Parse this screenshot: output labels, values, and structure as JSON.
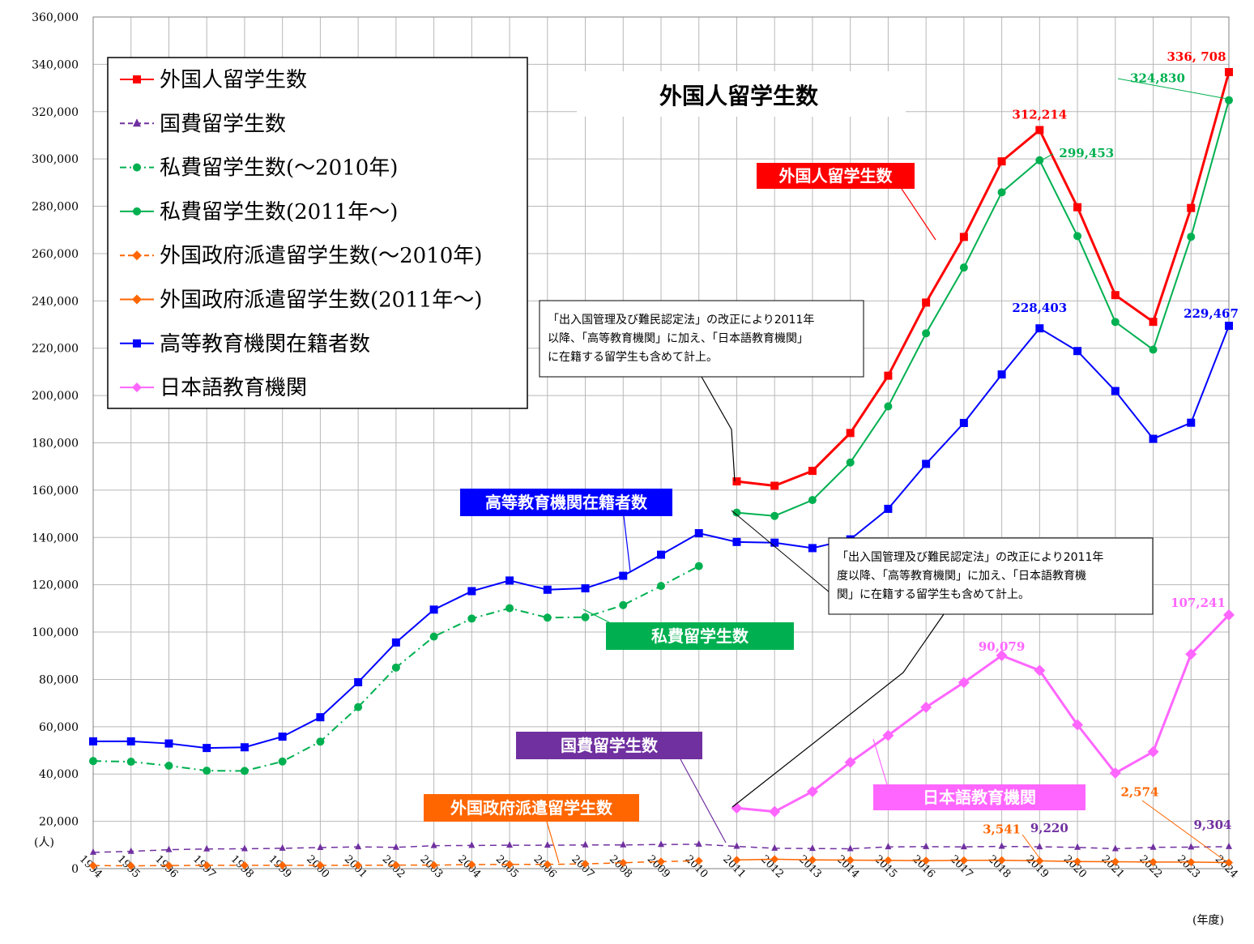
{
  "chart_data": {
    "type": "line",
    "title": "外国人留学生数",
    "y_unit": "(人)",
    "x_unit": "(年度)",
    "ylim": [
      0,
      360000
    ],
    "y_ticks": [
      "0",
      "20,000",
      "40,000",
      "60,000",
      "80,000",
      "100,000",
      "120,000",
      "140,000",
      "160,000",
      "180,000",
      "200,000",
      "220,000",
      "240,000",
      "260,000",
      "280,000",
      "300,000",
      "320,000",
      "340,000",
      "360,000"
    ],
    "x": [
      "1994",
      "1995",
      "1996",
      "1997",
      "1998",
      "1999",
      "2000",
      "2001",
      "2002",
      "2003",
      "2004",
      "2005",
      "2006",
      "2007",
      "2008",
      "2009",
      "2010",
      "2011",
      "2012",
      "2013",
      "2014",
      "2015",
      "2016",
      "2017",
      "2018",
      "2019",
      "2020",
      "2021",
      "2022",
      "2023",
      "2024"
    ],
    "grid": true,
    "legend_position": "top-left",
    "series": [
      {
        "name": "外国人留学生数",
        "color": "#ff0000",
        "marker": "square",
        "dash": "solid",
        "values": [
          null,
          null,
          null,
          null,
          null,
          null,
          null,
          null,
          null,
          null,
          null,
          null,
          null,
          null,
          null,
          null,
          null,
          163697,
          161848,
          168145,
          184155,
          208379,
          239287,
          267042,
          298980,
          312214,
          279597,
          242444,
          231146,
          279274,
          336708
        ]
      },
      {
        "name": "国費留学生数",
        "color": "#7030a0",
        "marker": "triangle",
        "dash": "dashed",
        "values": [
          6880,
          7300,
          8000,
          8300,
          8400,
          8600,
          8900,
          9200,
          9000,
          9700,
          9800,
          9900,
          9900,
          10000,
          10000,
          10200,
          10300,
          9400,
          8600,
          8500,
          8400,
          9200,
          9300,
          9200,
          9400,
          9220,
          9000,
          8400,
          9000,
          9100,
          9304
        ]
      },
      {
        "name": "私費留学生数(～2010年)",
        "color": "#00b050",
        "marker": "circle",
        "dash": "dashdot",
        "values": [
          45500,
          45200,
          43500,
          41400,
          41300,
          45300,
          53700,
          68300,
          85000,
          98100,
          105700,
          110100,
          106100,
          106300,
          111400,
          119500,
          127900,
          null,
          null,
          null,
          null,
          null,
          null,
          null,
          null,
          null,
          null,
          null,
          null,
          null,
          null
        ]
      },
      {
        "name": "私費留学生数(2011年～)",
        "color": "#00b050",
        "marker": "circle",
        "dash": "solid",
        "values": [
          null,
          null,
          null,
          null,
          null,
          null,
          null,
          null,
          null,
          null,
          null,
          null,
          null,
          null,
          null,
          null,
          null,
          150500,
          149100,
          155800,
          171700,
          195400,
          226300,
          254100,
          285900,
          299453,
          267400,
          231100,
          219400,
          267100,
          324830
        ]
      },
      {
        "name": "外国政府派遣留学生数(～2010年)",
        "color": "#ff6600",
        "marker": "diamond",
        "dash": "dashed",
        "values": [
          1300,
          1200,
          1300,
          1400,
          1400,
          1400,
          1400,
          1400,
          1500,
          1500,
          1700,
          1800,
          1800,
          2000,
          2500,
          3000,
          3300,
          null,
          null,
          null,
          null,
          null,
          null,
          null,
          null,
          null,
          null,
          null,
          null,
          null,
          null
        ]
      },
      {
        "name": "外国政府派遣留学生数(2011年～)",
        "color": "#ff6600",
        "marker": "diamond",
        "dash": "solid",
        "values": [
          null,
          null,
          null,
          null,
          null,
          null,
          null,
          null,
          null,
          null,
          null,
          null,
          null,
          null,
          null,
          null,
          null,
          3700,
          4000,
          3700,
          3600,
          3500,
          3400,
          3500,
          3541,
          3300,
          3000,
          2900,
          2800,
          2800,
          2574
        ]
      },
      {
        "name": "高等教育機関在籍者数",
        "color": "#0000ff",
        "marker": "square",
        "dash": "solid",
        "values": [
          53800,
          53800,
          52900,
          51000,
          51300,
          55800,
          64000,
          78800,
          95600,
          109500,
          117300,
          121800,
          117900,
          118500,
          123800,
          132700,
          141800,
          138100,
          137800,
          135500,
          139200,
          152100,
          171100,
          188400,
          208900,
          228403,
          218800,
          201900,
          181700,
          188500,
          229467
        ]
      },
      {
        "name": "日本語教育機関",
        "color": "#ff66ff",
        "marker": "diamond",
        "dash": "solid",
        "values": [
          null,
          null,
          null,
          null,
          null,
          null,
          null,
          null,
          null,
          null,
          null,
          null,
          null,
          null,
          null,
          null,
          null,
          25600,
          24100,
          32600,
          44970,
          56300,
          68200,
          78700,
          90079,
          83800,
          60800,
          40400,
          49400,
          90700,
          107241
        ]
      }
    ],
    "data_labels": [
      {
        "text": "336, 708",
        "series": "外国人留学生数",
        "x": "2024",
        "color": "#ff0000"
      },
      {
        "text": "312,214",
        "series": "外国人留学生数",
        "x": "2019",
        "color": "#ff0000"
      },
      {
        "text": "324,830",
        "series": "私費留学生数(2011年～)",
        "x": "2024",
        "color": "#00b050"
      },
      {
        "text": "299,453",
        "series": "私費留学生数(2011年～)",
        "x": "2019",
        "color": "#00b050"
      },
      {
        "text": "228,403",
        "series": "高等教育機関在籍者数",
        "x": "2019",
        "color": "#0000ff"
      },
      {
        "text": "229,467",
        "series": "高等教育機関在籍者数",
        "x": "2024",
        "color": "#0000ff"
      },
      {
        "text": "107,241",
        "series": "日本語教育機関",
        "x": "2024",
        "color": "#ff66ff"
      },
      {
        "text": "90,079",
        "series": "日本語教育機関",
        "x": "2018",
        "color": "#ff66ff"
      },
      {
        "text": "3,541",
        "series": "外国政府派遣留学生数(2011年～)",
        "x": "2018",
        "color": "#ff6600"
      },
      {
        "text": "9,220",
        "series": "国費留学生数",
        "x": "2019",
        "color": "#7030a0"
      },
      {
        "text": "2,574",
        "series": "外国政府派遣留学生数(2011年～)",
        "x": "2024",
        "color": "#ff6600"
      },
      {
        "text": "9,304",
        "series": "国費留学生数",
        "x": "2024",
        "color": "#7030a0"
      }
    ],
    "series_labels": [
      {
        "text": "外国人留学生数",
        "color": "#ff0000"
      },
      {
        "text": "高等教育機関在籍者数",
        "color": "#0000ff"
      },
      {
        "text": "私費留学生数",
        "color": "#00b050"
      },
      {
        "text": "国費留学生数",
        "color": "#7030a0"
      },
      {
        "text": "外国政府派遣留学生数",
        "color": "#ff6600"
      },
      {
        "text": "日本語教育機関",
        "color": "#ff66ff"
      }
    ],
    "annotations": [
      {
        "lines": [
          "「出入国管理及び難民認定法」の改正により2011年",
          "以降、「高等教育機関」に加え、「日本語教育機関」",
          "に在籍する留学生も含めて計上。"
        ]
      },
      {
        "lines": [
          "「出入国管理及び難民認定法」の改正により2011年",
          "度以降、「高等教育機関」に加え、「日本語教育機",
          "関」に在籍する留学生も含めて計上。"
        ]
      }
    ]
  }
}
